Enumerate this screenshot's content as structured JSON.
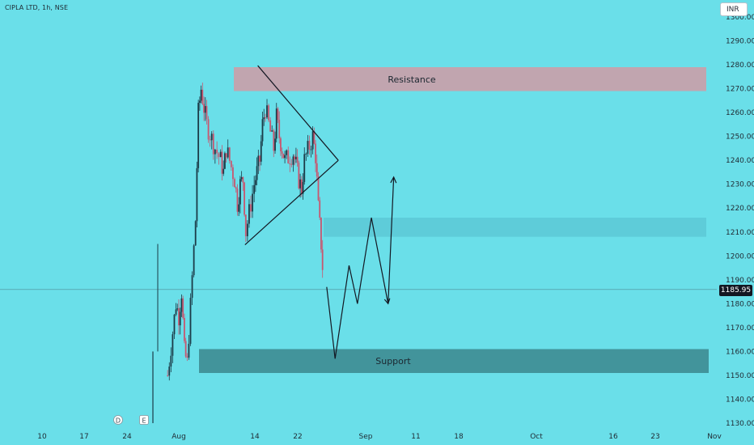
{
  "header": {
    "symbol": "CIPLA LTD",
    "interval": "1h",
    "exchange": "NSE"
  },
  "currency_selector": "INR",
  "last_price_tag": "1185.95",
  "colors": {
    "background": "#6adfe9",
    "candle_up": "#1b3b48",
    "candle_down": "#c8566f",
    "resistance_zone": "#c9a0a9",
    "mid_zone": "#5cc9d6",
    "support_zone": "#3f8d94",
    "drawing": "#131722"
  },
  "chart_data": {
    "type": "candlestick",
    "title": "",
    "y_ticks": [
      1130,
      1140,
      1150,
      1160,
      1170,
      1180,
      1190,
      1200,
      1210,
      1220,
      1230,
      1240,
      1250,
      1260,
      1270,
      1280,
      1290,
      1300
    ],
    "y_tick_labels": [
      "1130.00",
      "1140.00",
      "1150.00",
      "1160.00",
      "1170.00",
      "1180.00",
      "1190.00",
      "1200.00",
      "1210.00",
      "1220.00",
      "1230.00",
      "1240.00",
      "1250.00",
      "1260.00",
      "1270.00",
      "1280.00",
      "1290.00",
      "1300.00"
    ],
    "ylim": [
      1128,
      1306
    ],
    "x_tick_labels": [
      "10",
      "17",
      "24",
      "Aug",
      "14",
      "22",
      "Sep",
      "11",
      "18",
      "Oct",
      "16",
      "23",
      "Nov"
    ],
    "x_axis_markers": [
      "D",
      "E"
    ],
    "last_price": 1185.95,
    "zones": [
      {
        "name": "Resistance",
        "label": "Resistance",
        "low": 1269,
        "high": 1279
      },
      {
        "name": "mid",
        "label": "",
        "low": 1208,
        "high": 1216
      },
      {
        "name": "Support",
        "label": "Support",
        "low": 1151,
        "high": 1161
      }
    ],
    "price_path": [
      {
        "date": "2023-07-28",
        "close": 1150
      },
      {
        "date": "2023-07-31",
        "close": 1180
      },
      {
        "date": "2023-08-01",
        "close": 1175
      },
      {
        "date": "2023-08-02",
        "close": 1185
      },
      {
        "date": "2023-08-03",
        "close": 1160
      },
      {
        "date": "2023-08-04",
        "close": 1155
      },
      {
        "date": "2023-08-07",
        "close": 1215
      },
      {
        "date": "2023-08-08",
        "close": 1260
      },
      {
        "date": "2023-08-09",
        "close": 1270
      },
      {
        "date": "2023-08-10",
        "close": 1262
      },
      {
        "date": "2023-08-11",
        "close": 1255
      },
      {
        "date": "2023-08-14",
        "close": 1245
      },
      {
        "date": "2023-08-16",
        "close": 1240
      },
      {
        "date": "2023-08-17",
        "close": 1235
      },
      {
        "date": "2023-08-18",
        "close": 1245
      },
      {
        "date": "2023-08-21",
        "close": 1232
      },
      {
        "date": "2023-08-22",
        "close": 1222
      },
      {
        "date": "2023-08-23",
        "close": 1230
      },
      {
        "date": "2023-08-24",
        "close": 1232
      },
      {
        "date": "2023-08-25",
        "close": 1210
      },
      {
        "date": "2023-08-28",
        "close": 1230
      },
      {
        "date": "2023-08-29",
        "close": 1235
      },
      {
        "date": "2023-08-30",
        "close": 1240
      },
      {
        "date": "2023-08-31",
        "close": 1255
      },
      {
        "date": "2023-09-01",
        "close": 1262
      },
      {
        "date": "2023-09-04",
        "close": 1245
      },
      {
        "date": "2023-09-05",
        "close": 1258
      },
      {
        "date": "2023-09-06",
        "close": 1250
      },
      {
        "date": "2023-09-07",
        "close": 1245
      },
      {
        "date": "2023-09-08",
        "close": 1240
      },
      {
        "date": "2023-09-11",
        "close": 1243
      },
      {
        "date": "2023-09-12",
        "close": 1238
      },
      {
        "date": "2023-09-13",
        "close": 1232
      },
      {
        "date": "2023-09-14",
        "close": 1228
      },
      {
        "date": "2023-09-15",
        "close": 1240
      },
      {
        "date": "2023-09-18",
        "close": 1250
      },
      {
        "date": "2023-09-19",
        "close": 1242
      },
      {
        "date": "2023-09-20",
        "close": 1220
      },
      {
        "date": "2023-09-21",
        "close": 1205
      },
      {
        "date": "2023-09-22",
        "close": 1185.95
      }
    ],
    "triangle": {
      "apex": {
        "date": "2023-09-26",
        "price": 1240
      },
      "upper_start": {
        "date": "2023-08-29",
        "price": 1280
      },
      "lower_start": {
        "date": "2023-08-25",
        "price": 1205
      }
    },
    "projection": [
      {
        "date": "2023-09-23",
        "price": 1187
      },
      {
        "date": "2023-09-26",
        "price": 1157
      },
      {
        "date": "2023-10-01",
        "price": 1196
      },
      {
        "date": "2023-10-04",
        "price": 1180
      },
      {
        "date": "2023-10-09",
        "price": 1216
      },
      {
        "date": "2023-10-15",
        "price": 1180
      },
      {
        "date": "2023-10-17",
        "price": 1233
      }
    ]
  }
}
